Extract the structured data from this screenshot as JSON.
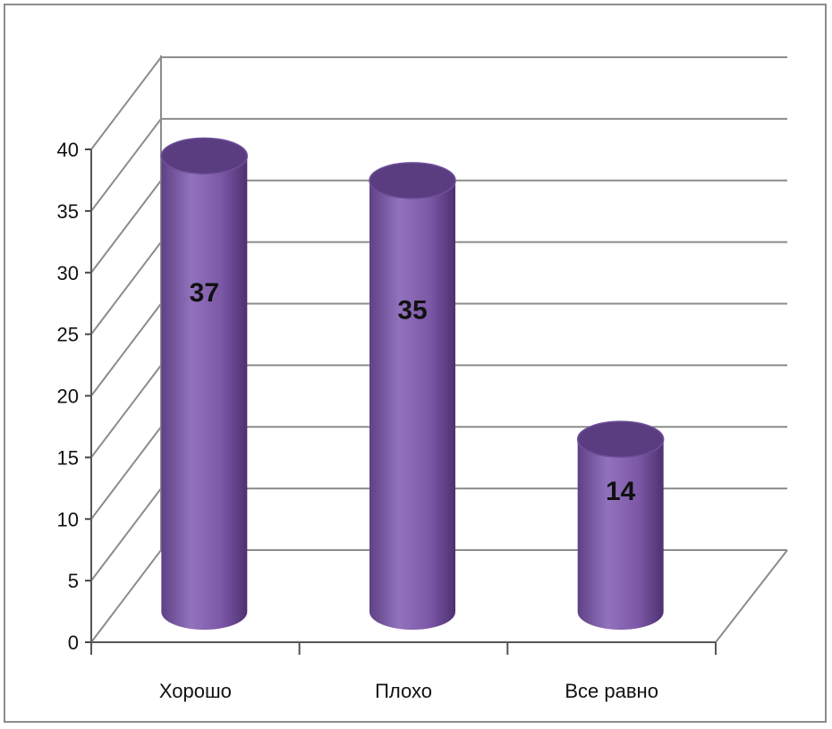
{
  "chart_data": {
    "type": "bar",
    "style": "3d-cylinder",
    "categories": [
      "Хорошо",
      "Плохо",
      "Все равно"
    ],
    "values": [
      37,
      35,
      14
    ],
    "data_labels": [
      "37",
      "35",
      "14"
    ],
    "ylim": [
      0,
      40
    ],
    "y_ticks": [
      "0",
      "5",
      "10",
      "15",
      "20",
      "25",
      "30",
      "35",
      "40"
    ],
    "title": "",
    "xlabel": "",
    "ylabel": "",
    "grid": true,
    "legend": "none",
    "colors": {
      "bar": "#7e5aa7",
      "bar_top": "#5a3d80",
      "grid": "#8c8c8c",
      "frame": "#8c8c8c"
    }
  }
}
